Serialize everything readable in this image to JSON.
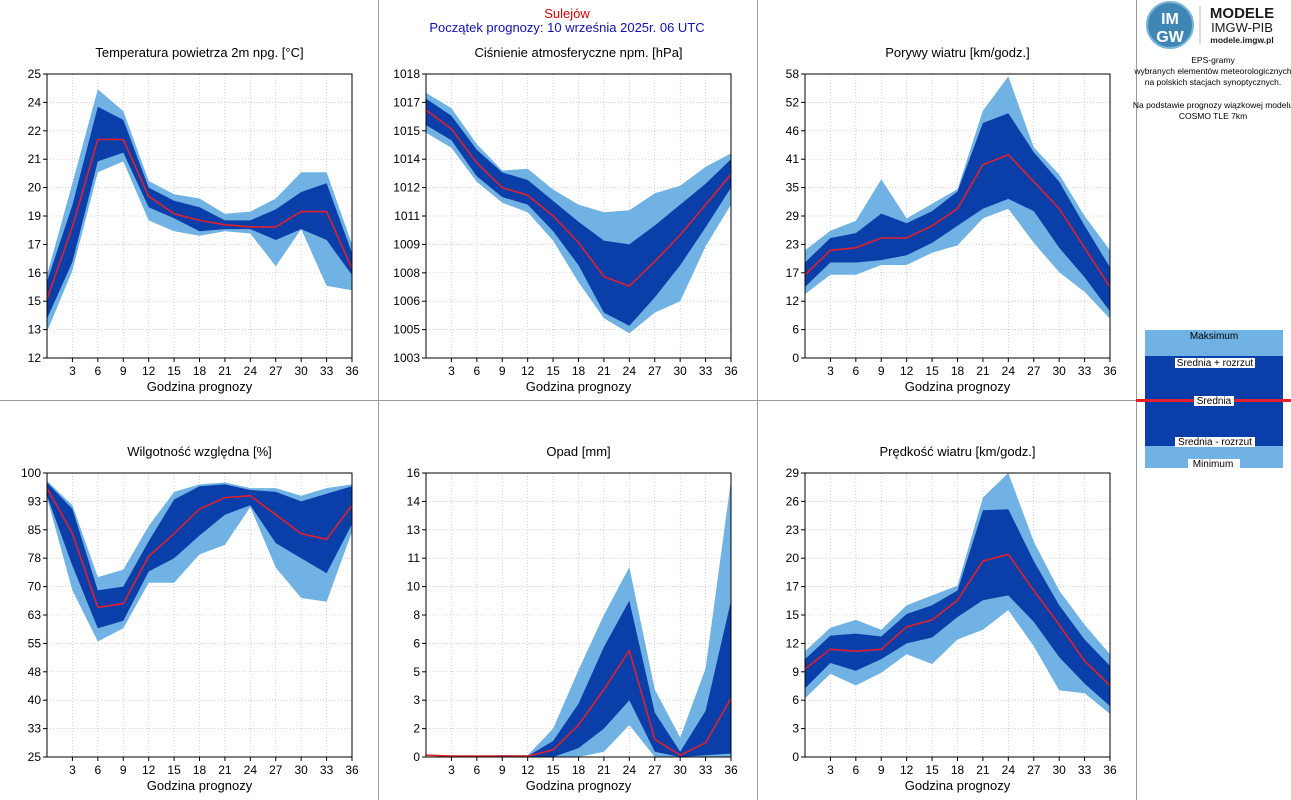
{
  "header": {
    "station": "Sulejów",
    "forecast_start": "Początek prognozy: 10 września 2025r. 06 UTC"
  },
  "brand": {
    "logo_top": "IM",
    "logo_bottom": "GW",
    "name": "MODELE",
    "org": "IMGW-PIB",
    "url": "modele.imgw.pl"
  },
  "info": {
    "lines": [
      "EPS-gramy",
      "wybranych elementów meteorologicznych",
      "na polskich stacjach  synoptycznych.",
      "",
      "Na podstawie prognozy wiązkowej modelu",
      "COSMO TLE 7km"
    ]
  },
  "legend": {
    "max": "Maksimum",
    "mean_plus": "Średnia + rozrzut",
    "mean": "Średnia",
    "mean_minus": "Średnia - rozrzut",
    "min": "Minimum"
  },
  "colors": {
    "outer_band": "#70b2e4",
    "inner_band": "#0a3ea8",
    "mean_line": "#e0202c",
    "grid": "#b4b4b4",
    "divider": "#9a9a9a"
  },
  "chart_data": [
    {
      "type": "area",
      "title": "Temperatura powietrza 2m npg. [°C]",
      "xlabel": "Godzina prognozy",
      "ylabel": "",
      "x": [
        0,
        3,
        6,
        9,
        12,
        15,
        18,
        21,
        24,
        27,
        30,
        33,
        36
      ],
      "xticks": [
        3,
        6,
        9,
        12,
        15,
        18,
        21,
        24,
        27,
        30,
        33,
        36
      ],
      "yticks": [
        "12",
        "13",
        "15",
        "16",
        "17",
        "19",
        "20",
        "21",
        "22",
        "24",
        "25"
      ],
      "ylim": [
        12,
        25
      ],
      "series": [
        {
          "name": "Maksimum",
          "values": [
            15.8,
            20.0,
            24.3,
            23.3,
            20.1,
            19.5,
            19.3,
            18.6,
            18.7,
            19.3,
            20.5,
            20.5,
            17.2
          ]
        },
        {
          "name": "Średnia + rozrzut",
          "values": [
            15.5,
            19.0,
            23.5,
            22.9,
            19.8,
            19.2,
            18.9,
            18.3,
            18.3,
            18.8,
            19.6,
            20.0,
            16.8
          ]
        },
        {
          "name": "Średnia",
          "values": [
            14.7,
            18.0,
            22.0,
            22.0,
            19.4,
            18.6,
            18.3,
            18.1,
            18.0,
            18.0,
            18.7,
            18.7,
            16.1
          ]
        },
        {
          "name": "Średnia - rozrzut",
          "values": [
            13.8,
            16.4,
            21.0,
            21.4,
            18.9,
            18.4,
            17.8,
            17.9,
            17.9,
            17.4,
            17.9,
            17.4,
            15.8
          ]
        },
        {
          "name": "Minimum",
          "values": [
            13.2,
            16.0,
            20.5,
            21.0,
            18.3,
            17.8,
            17.6,
            17.8,
            17.7,
            16.2,
            17.9,
            15.3,
            15.1
          ]
        }
      ]
    },
    {
      "type": "area",
      "title": "Ciśnienie atmosferyczne npm. [hPa]",
      "xlabel": "Godzina prognozy",
      "ylabel": "",
      "x": [
        0,
        3,
        6,
        9,
        12,
        15,
        18,
        21,
        24,
        27,
        30,
        33,
        36
      ],
      "xticks": [
        3,
        6,
        9,
        12,
        15,
        18,
        21,
        24,
        27,
        30,
        33,
        36
      ],
      "yticks": [
        "1003",
        "1005",
        "1006",
        "1008",
        "1009",
        "1011",
        "1012",
        "1014",
        "1015",
        "1017",
        "1018"
      ],
      "ylim": [
        1003.5,
        1018.5
      ],
      "series": [
        {
          "name": "Maksimum",
          "values": [
            1017.5,
            1016.7,
            1014.8,
            1013.4,
            1013.5,
            1012.4,
            1011.6,
            1011.2,
            1011.3,
            1012.2,
            1012.6,
            1013.6,
            1014.3
          ]
        },
        {
          "name": "Średnia + rozrzut",
          "values": [
            1017.2,
            1016.3,
            1014.5,
            1013.3,
            1012.9,
            1011.8,
            1010.7,
            1009.7,
            1009.5,
            1010.5,
            1011.6,
            1012.7,
            1014.0
          ]
        },
        {
          "name": "Średnia",
          "values": [
            1016.6,
            1015.6,
            1013.8,
            1012.5,
            1012.1,
            1011.0,
            1009.6,
            1007.8,
            1007.3,
            1008.6,
            1010.0,
            1011.6,
            1013.2
          ]
        },
        {
          "name": "Średnia - rozrzut",
          "values": [
            1015.8,
            1015.0,
            1013.1,
            1012.0,
            1011.6,
            1010.2,
            1008.4,
            1005.9,
            1005.2,
            1006.7,
            1008.4,
            1010.4,
            1012.5
          ]
        },
        {
          "name": "Minimum",
          "values": [
            1015.4,
            1014.6,
            1012.8,
            1011.7,
            1011.2,
            1009.7,
            1007.5,
            1005.6,
            1004.8,
            1005.9,
            1006.5,
            1009.4,
            1011.6
          ]
        }
      ]
    },
    {
      "type": "area",
      "title": "Porywy wiatru [km/godz.]",
      "xlabel": "Godzina prognozy",
      "ylabel": "",
      "x": [
        0,
        3,
        6,
        9,
        12,
        15,
        18,
        21,
        24,
        27,
        30,
        33,
        36
      ],
      "xticks": [
        3,
        6,
        9,
        12,
        15,
        18,
        21,
        24,
        27,
        30,
        33,
        36
      ],
      "yticks": [
        "0",
        "6",
        "12",
        "17",
        "23",
        "29",
        "35",
        "41",
        "46",
        "52",
        "58"
      ],
      "ylim": [
        0,
        58
      ],
      "series": [
        {
          "name": "Maksimum",
          "values": [
            22.0,
            26.0,
            28.0,
            36.5,
            28.5,
            31.5,
            34.5,
            50.5,
            57.5,
            43.0,
            37.5,
            29.0,
            22.0
          ]
        },
        {
          "name": "Średnia + rozrzut",
          "values": [
            19.5,
            24.5,
            25.5,
            29.5,
            27.5,
            30.0,
            34.0,
            48.0,
            50.0,
            42.0,
            36.0,
            27.0,
            18.5
          ]
        },
        {
          "name": "Średnia",
          "values": [
            17.0,
            22.0,
            22.5,
            24.5,
            24.5,
            27.0,
            30.5,
            39.5,
            41.5,
            36.0,
            30.5,
            22.5,
            14.5
          ]
        },
        {
          "name": "Średnia - rozrzut",
          "values": [
            14.5,
            19.5,
            19.5,
            20.0,
            21.0,
            23.5,
            27.0,
            30.5,
            32.5,
            30.0,
            22.5,
            16.5,
            9.5
          ]
        },
        {
          "name": "Minimum",
          "values": [
            13.0,
            17.0,
            17.0,
            19.0,
            19.0,
            21.5,
            23.0,
            28.5,
            30.5,
            23.5,
            17.5,
            13.5,
            8.0
          ]
        }
      ]
    },
    {
      "type": "area",
      "title": "Wilgotność względna [%]",
      "xlabel": "Godzina prognozy",
      "ylabel": "",
      "x": [
        0,
        3,
        6,
        9,
        12,
        15,
        18,
        21,
        24,
        27,
        30,
        33,
        36
      ],
      "xticks": [
        3,
        6,
        9,
        12,
        15,
        18,
        21,
        24,
        27,
        30,
        33,
        36
      ],
      "yticks": [
        "25",
        "33",
        "40",
        "48",
        "55",
        "63",
        "70",
        "78",
        "85",
        "93",
        "100"
      ],
      "ylim": [
        25,
        100
      ],
      "series": [
        {
          "name": "Maksimum",
          "values": [
            98.0,
            91.5,
            72.5,
            74.5,
            86.0,
            95.0,
            97.0,
            97.5,
            96.0,
            96.0,
            94.0,
            96.0,
            97.0
          ]
        },
        {
          "name": "Średnia + rozrzut",
          "values": [
            97.5,
            90.5,
            69.0,
            70.0,
            82.0,
            93.0,
            96.5,
            97.0,
            95.5,
            95.0,
            92.5,
            94.5,
            96.5
          ]
        },
        {
          "name": "Średnia",
          "values": [
            96.0,
            84.0,
            64.5,
            65.5,
            78.0,
            84.0,
            90.5,
            93.5,
            94.0,
            89.0,
            84.0,
            82.5,
            91.5
          ]
        },
        {
          "name": "Średnia - rozrzut",
          "values": [
            94.0,
            75.5,
            59.0,
            61.0,
            74.0,
            77.5,
            83.5,
            89.0,
            91.5,
            81.5,
            77.5,
            73.5,
            86.5
          ]
        },
        {
          "name": "Minimum",
          "values": [
            93.5,
            69.0,
            55.5,
            59.0,
            71.0,
            71.0,
            78.5,
            81.0,
            91.0,
            75.0,
            67.0,
            66.0,
            84.5
          ]
        }
      ]
    },
    {
      "type": "area",
      "title": "Opad [mm]",
      "xlabel": "Godzina prognozy",
      "ylabel": "",
      "x": [
        0,
        3,
        6,
        9,
        12,
        15,
        18,
        21,
        24,
        27,
        30,
        33,
        36
      ],
      "xticks": [
        3,
        6,
        9,
        12,
        15,
        18,
        21,
        24,
        27,
        30,
        33,
        36
      ],
      "yticks": [
        "0",
        "2",
        "3",
        "5",
        "6",
        "8",
        "10",
        "11",
        "13",
        "14",
        "16"
      ],
      "ylim": [
        0,
        16
      ],
      "series": [
        {
          "name": "Maksimum",
          "values": [
            0.1,
            0.05,
            0.05,
            0.1,
            0.1,
            1.6,
            4.9,
            8.0,
            10.7,
            3.8,
            1.1,
            5.0,
            15.6
          ]
        },
        {
          "name": "Średnia + rozrzut",
          "values": [
            0.1,
            0.05,
            0.05,
            0.1,
            0.05,
            0.9,
            3.0,
            6.2,
            8.8,
            2.5,
            0.3,
            2.6,
            8.8
          ]
        },
        {
          "name": "Średnia",
          "values": [
            0.1,
            0.05,
            0.05,
            0.05,
            0.05,
            0.4,
            1.8,
            3.8,
            6.0,
            1.0,
            0.1,
            0.8,
            3.3
          ]
        },
        {
          "name": "Średnia - rozrzut",
          "values": [
            0.1,
            0.05,
            0.0,
            0.0,
            0.0,
            0.0,
            0.5,
            1.6,
            3.2,
            0.3,
            0.0,
            0.1,
            0.2
          ]
        },
        {
          "name": "Minimum",
          "values": [
            0.1,
            0.05,
            0.0,
            0.0,
            0.0,
            0.0,
            0.0,
            0.3,
            1.8,
            0.0,
            0.0,
            0.0,
            0.0
          ]
        }
      ]
    },
    {
      "type": "area",
      "title": "Prędkość wiatru [km/godz.]",
      "xlabel": "Godzina prognozy",
      "ylabel": "",
      "x": [
        0,
        3,
        6,
        9,
        12,
        15,
        18,
        21,
        24,
        27,
        30,
        33,
        36
      ],
      "xticks": [
        3,
        6,
        9,
        12,
        15,
        18,
        21,
        24,
        27,
        30,
        33,
        36
      ],
      "yticks": [
        "0",
        "3",
        "6",
        "9",
        "12",
        "15",
        "17",
        "20",
        "23",
        "26",
        "29"
      ],
      "ylim": [
        0,
        29
      ],
      "series": [
        {
          "name": "Maksimum",
          "values": [
            10.8,
            13.2,
            14.0,
            13.0,
            15.5,
            16.5,
            17.5,
            26.5,
            29.0,
            22.0,
            17.0,
            13.5,
            10.5
          ]
        },
        {
          "name": "Średnia + rozrzut",
          "values": [
            10.0,
            12.4,
            12.6,
            12.3,
            14.6,
            15.5,
            17.0,
            25.2,
            25.3,
            20.0,
            15.5,
            12.0,
            9.3
          ]
        },
        {
          "name": "Średnia",
          "values": [
            9.0,
            11.0,
            10.8,
            11.0,
            13.3,
            14.0,
            16.0,
            20.0,
            20.7,
            17.0,
            13.5,
            9.8,
            7.3
          ]
        },
        {
          "name": "Średnia - rozrzut",
          "values": [
            7.0,
            9.6,
            8.8,
            10.0,
            11.6,
            12.2,
            14.3,
            16.0,
            16.5,
            13.8,
            10.2,
            7.5,
            5.2
          ]
        },
        {
          "name": "Minimum",
          "values": [
            6.0,
            8.5,
            7.3,
            8.6,
            10.5,
            9.5,
            12.0,
            13.0,
            15.0,
            11.3,
            6.8,
            6.5,
            4.4
          ]
        }
      ]
    }
  ]
}
